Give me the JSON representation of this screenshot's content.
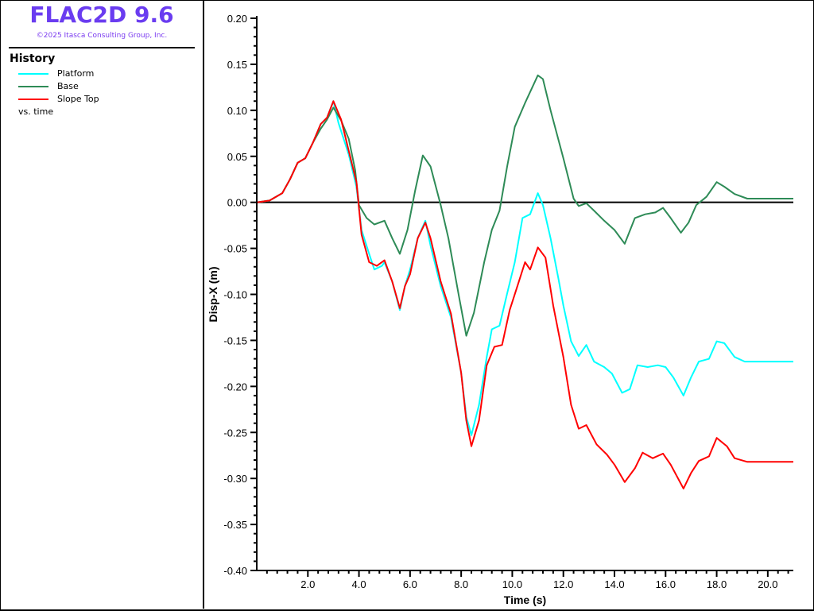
{
  "header": {
    "title": "FLAC2D 9.6",
    "copyright": "©2025 Itasca Consulting Group, Inc."
  },
  "legend": {
    "heading": "History",
    "items": [
      {
        "label": "Platform",
        "color": "#00ffff"
      },
      {
        "label": "Base",
        "color": "#2e8b57"
      },
      {
        "label": "Slope Top",
        "color": "#ff0000"
      }
    ],
    "footer": "vs. time"
  },
  "chart_data": {
    "type": "line",
    "xlabel": "Time (s)",
    "ylabel": "Disp-X (m)",
    "xlim": [
      0,
      21
    ],
    "ylim": [
      -0.4,
      0.2
    ],
    "xticks": [
      "2.0",
      "4.0",
      "6.0",
      "8.0",
      "10.0",
      "12.0",
      "14.0",
      "16.0",
      "18.0",
      "20.0"
    ],
    "yticks": [
      "0.20",
      "0.15",
      "0.10",
      "0.05",
      "0.00",
      "-0.05",
      "-0.10",
      "-0.15",
      "-0.20",
      "-0.25",
      "-0.30",
      "-0.35",
      "-0.40"
    ],
    "zero_line": true,
    "series": [
      {
        "name": "Platform",
        "color": "#00ffff",
        "points": [
          [
            0,
            0
          ],
          [
            0.5,
            0.002
          ],
          [
            1.0,
            0.01
          ],
          [
            1.3,
            0.025
          ],
          [
            1.6,
            0.043
          ],
          [
            1.9,
            0.048
          ],
          [
            2.2,
            0.065
          ],
          [
            2.5,
            0.085
          ],
          [
            2.75,
            0.092
          ],
          [
            3.0,
            0.11
          ],
          [
            3.2,
            0.086
          ],
          [
            3.6,
            0.052
          ],
          [
            3.9,
            0.017
          ],
          [
            4.1,
            -0.03
          ],
          [
            4.4,
            -0.056
          ],
          [
            4.6,
            -0.073
          ],
          [
            4.9,
            -0.069
          ],
          [
            5.0,
            -0.065
          ],
          [
            5.3,
            -0.086
          ],
          [
            5.6,
            -0.117
          ],
          [
            5.8,
            -0.091
          ],
          [
            6.0,
            -0.073
          ],
          [
            6.3,
            -0.039
          ],
          [
            6.6,
            -0.02
          ],
          [
            6.8,
            -0.047
          ],
          [
            7.2,
            -0.091
          ],
          [
            7.6,
            -0.125
          ],
          [
            8.0,
            -0.185
          ],
          [
            8.2,
            -0.233
          ],
          [
            8.4,
            -0.253
          ],
          [
            8.7,
            -0.22
          ],
          [
            9.0,
            -0.168
          ],
          [
            9.2,
            -0.138
          ],
          [
            9.5,
            -0.134
          ],
          [
            9.8,
            -0.099
          ],
          [
            10.1,
            -0.065
          ],
          [
            10.4,
            -0.017
          ],
          [
            10.7,
            -0.013
          ],
          [
            11.0,
            0.01
          ],
          [
            11.2,
            -0.003
          ],
          [
            11.5,
            -0.039
          ],
          [
            11.8,
            -0.082
          ],
          [
            12.0,
            -0.112
          ],
          [
            12.3,
            -0.151
          ],
          [
            12.6,
            -0.167
          ],
          [
            12.9,
            -0.155
          ],
          [
            13.2,
            -0.173
          ],
          [
            13.6,
            -0.179
          ],
          [
            13.9,
            -0.186
          ],
          [
            14.3,
            -0.207
          ],
          [
            14.6,
            -0.203
          ],
          [
            14.9,
            -0.177
          ],
          [
            15.3,
            -0.179
          ],
          [
            15.7,
            -0.177
          ],
          [
            16.0,
            -0.179
          ],
          [
            16.3,
            -0.19
          ],
          [
            16.7,
            -0.21
          ],
          [
            17.0,
            -0.19
          ],
          [
            17.3,
            -0.173
          ],
          [
            17.7,
            -0.17
          ],
          [
            18.0,
            -0.151
          ],
          [
            18.3,
            -0.153
          ],
          [
            18.7,
            -0.168
          ],
          [
            19.1,
            -0.173
          ],
          [
            21.0,
            -0.173
          ]
        ]
      },
      {
        "name": "Base",
        "color": "#2e8b57",
        "points": [
          [
            0,
            0
          ],
          [
            0.5,
            0.002
          ],
          [
            1.0,
            0.01
          ],
          [
            1.3,
            0.025
          ],
          [
            1.6,
            0.043
          ],
          [
            1.9,
            0.048
          ],
          [
            2.2,
            0.065
          ],
          [
            2.5,
            0.08
          ],
          [
            2.75,
            0.09
          ],
          [
            3.0,
            0.103
          ],
          [
            3.3,
            0.089
          ],
          [
            3.6,
            0.069
          ],
          [
            3.85,
            0.035
          ],
          [
            4.0,
            -0.003
          ],
          [
            4.3,
            -0.017
          ],
          [
            4.6,
            -0.024
          ],
          [
            5.0,
            -0.02
          ],
          [
            5.3,
            -0.039
          ],
          [
            5.6,
            -0.056
          ],
          [
            5.9,
            -0.03
          ],
          [
            6.2,
            0.013
          ],
          [
            6.5,
            0.051
          ],
          [
            6.8,
            0.039
          ],
          [
            7.2,
            -0.003
          ],
          [
            7.5,
            -0.039
          ],
          [
            7.9,
            -0.1
          ],
          [
            8.2,
            -0.145
          ],
          [
            8.5,
            -0.12
          ],
          [
            8.9,
            -0.065
          ],
          [
            9.2,
            -0.03
          ],
          [
            9.5,
            -0.009
          ],
          [
            9.8,
            0.039
          ],
          [
            10.1,
            0.082
          ],
          [
            10.5,
            0.108
          ],
          [
            11.0,
            0.138
          ],
          [
            11.2,
            0.134
          ],
          [
            11.5,
            0.1
          ],
          [
            12.0,
            0.048
          ],
          [
            12.4,
            0.004
          ],
          [
            12.6,
            -0.004
          ],
          [
            12.9,
            -0.001
          ],
          [
            13.2,
            -0.009
          ],
          [
            13.6,
            -0.02
          ],
          [
            14.0,
            -0.03
          ],
          [
            14.4,
            -0.045
          ],
          [
            14.8,
            -0.017
          ],
          [
            15.2,
            -0.013
          ],
          [
            15.6,
            -0.011
          ],
          [
            15.9,
            -0.006
          ],
          [
            16.2,
            -0.017
          ],
          [
            16.6,
            -0.033
          ],
          [
            16.9,
            -0.022
          ],
          [
            17.2,
            -0.003
          ],
          [
            17.6,
            0.006
          ],
          [
            18.0,
            0.022
          ],
          [
            18.3,
            0.017
          ],
          [
            18.7,
            0.009
          ],
          [
            19.2,
            0.004
          ],
          [
            21.0,
            0.004
          ]
        ]
      },
      {
        "name": "Slope Top",
        "color": "#ff0000",
        "points": [
          [
            0,
            0
          ],
          [
            0.5,
            0.002
          ],
          [
            1.0,
            0.01
          ],
          [
            1.3,
            0.025
          ],
          [
            1.6,
            0.043
          ],
          [
            1.9,
            0.048
          ],
          [
            2.2,
            0.065
          ],
          [
            2.5,
            0.085
          ],
          [
            2.75,
            0.092
          ],
          [
            3.0,
            0.11
          ],
          [
            3.3,
            0.09
          ],
          [
            3.6,
            0.056
          ],
          [
            3.9,
            0.022
          ],
          [
            4.1,
            -0.035
          ],
          [
            4.4,
            -0.065
          ],
          [
            4.7,
            -0.069
          ],
          [
            5.0,
            -0.063
          ],
          [
            5.3,
            -0.086
          ],
          [
            5.6,
            -0.115
          ],
          [
            5.8,
            -0.091
          ],
          [
            6.0,
            -0.078
          ],
          [
            6.3,
            -0.039
          ],
          [
            6.6,
            -0.022
          ],
          [
            6.8,
            -0.039
          ],
          [
            7.2,
            -0.086
          ],
          [
            7.6,
            -0.121
          ],
          [
            8.0,
            -0.185
          ],
          [
            8.2,
            -0.237
          ],
          [
            8.4,
            -0.265
          ],
          [
            8.7,
            -0.237
          ],
          [
            9.0,
            -0.177
          ],
          [
            9.3,
            -0.157
          ],
          [
            9.6,
            -0.155
          ],
          [
            9.9,
            -0.117
          ],
          [
            10.2,
            -0.091
          ],
          [
            10.5,
            -0.065
          ],
          [
            10.7,
            -0.073
          ],
          [
            11.0,
            -0.049
          ],
          [
            11.3,
            -0.06
          ],
          [
            11.6,
            -0.112
          ],
          [
            12.0,
            -0.168
          ],
          [
            12.3,
            -0.22
          ],
          [
            12.6,
            -0.246
          ],
          [
            12.9,
            -0.242
          ],
          [
            13.3,
            -0.263
          ],
          [
            13.7,
            -0.274
          ],
          [
            14.0,
            -0.285
          ],
          [
            14.4,
            -0.304
          ],
          [
            14.8,
            -0.289
          ],
          [
            15.1,
            -0.272
          ],
          [
            15.5,
            -0.278
          ],
          [
            15.9,
            -0.273
          ],
          [
            16.2,
            -0.285
          ],
          [
            16.7,
            -0.311
          ],
          [
            17.0,
            -0.294
          ],
          [
            17.3,
            -0.281
          ],
          [
            17.7,
            -0.276
          ],
          [
            18.0,
            -0.256
          ],
          [
            18.4,
            -0.265
          ],
          [
            18.7,
            -0.278
          ],
          [
            19.2,
            -0.282
          ],
          [
            21.0,
            -0.282
          ]
        ]
      }
    ]
  }
}
